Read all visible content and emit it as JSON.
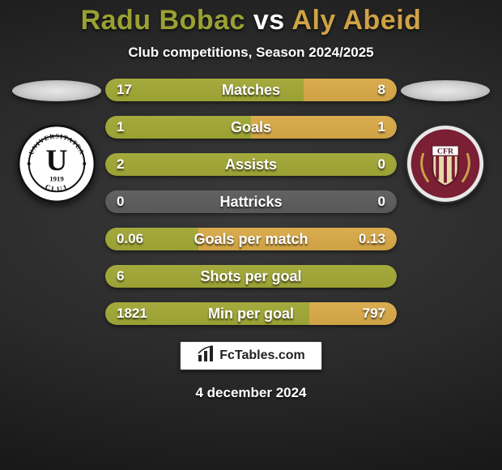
{
  "title": {
    "player1": "Radu Bobac",
    "vs": "vs",
    "player2": "Aly Abeid",
    "color1": "#9aa033",
    "color_vs": "#ffffff",
    "color2": "#cfa245"
  },
  "subtitle": "Club competitions, Season 2024/2025",
  "left_color": "#9aa033",
  "right_color": "#cfa245",
  "neutral_color": "#585858",
  "crests": {
    "left": {
      "bg": "#ffffff",
      "ring": "#111111",
      "letter": "U",
      "letter_color": "#111111",
      "year": "1919",
      "top_text": "UNIVERSITATEA",
      "bottom_text": "CLUJ"
    },
    "right": {
      "bg": "#7a1f34",
      "ring": "#e8e8e8",
      "letters": "CFR"
    }
  },
  "stats": [
    {
      "label": "Matches",
      "l": "17",
      "r": "8",
      "mode": "split",
      "split_pct": 68
    },
    {
      "label": "Goals",
      "l": "1",
      "r": "1",
      "mode": "split",
      "split_pct": 50
    },
    {
      "label": "Assists",
      "l": "2",
      "r": "0",
      "mode": "full-left",
      "split_pct": 100
    },
    {
      "label": "Hattricks",
      "l": "0",
      "r": "0",
      "mode": "neutral",
      "split_pct": 0
    },
    {
      "label": "Goals per match",
      "l": "0.06",
      "r": "0.13",
      "mode": "split",
      "split_pct": 32
    },
    {
      "label": "Shots per goal",
      "l": "6",
      "r": "",
      "mode": "full-left",
      "split_pct": 100
    },
    {
      "label": "Min per goal",
      "l": "1821",
      "r": "797",
      "mode": "split",
      "split_pct": 70
    }
  ],
  "footer": {
    "brand": "FcTables.com",
    "date": "4 december 2024"
  }
}
